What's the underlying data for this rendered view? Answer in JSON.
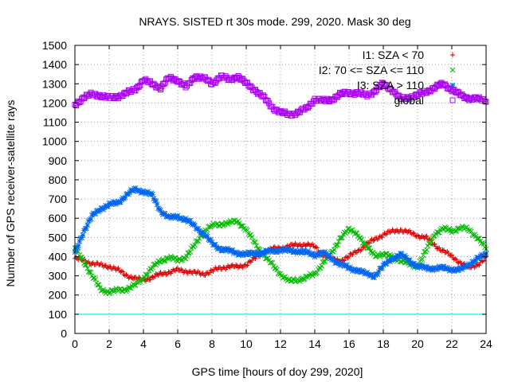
{
  "chart_data": {
    "type": "scatter",
    "title": "NRAYS. SISTED rt 30s mode. 299, 2020. Mask 30 deg",
    "xlabel": "GPS time [hours of doy 299, 2020]",
    "ylabel": "Number of GPS receiver-satellite rays",
    "xlim": [
      0,
      24
    ],
    "ylim": [
      0,
      1500
    ],
    "xticks": [
      "0",
      "2",
      "4",
      "6",
      "8",
      "10",
      "12",
      "14",
      "16",
      "18",
      "20",
      "22",
      "24"
    ],
    "yticks": [
      "0",
      "100",
      "200",
      "300",
      "400",
      "500",
      "600",
      "700",
      "800",
      "900",
      "1000",
      "1100",
      "1200",
      "1300",
      "1400",
      "1500"
    ],
    "grid": true,
    "legend_position": "top-right",
    "reference_line": {
      "y": 100,
      "color": "#00dddd"
    },
    "series": [
      {
        "name": "I1: SZA < 70",
        "marker": "+",
        "color": "#dd0000",
        "points": [
          [
            0,
            390
          ],
          [
            0.5,
            380
          ],
          [
            1,
            365
          ],
          [
            1.5,
            355
          ],
          [
            2,
            350
          ],
          [
            2.5,
            330
          ],
          [
            3,
            305
          ],
          [
            3.5,
            285
          ],
          [
            4,
            280
          ],
          [
            4.5,
            290
          ],
          [
            5,
            310
          ],
          [
            5.5,
            320
          ],
          [
            6,
            330
          ],
          [
            6.5,
            325
          ],
          [
            7,
            315
          ],
          [
            7.5,
            310
          ],
          [
            8,
            325
          ],
          [
            8.5,
            340
          ],
          [
            9,
            350
          ],
          [
            9.5,
            345
          ],
          [
            10,
            360
          ],
          [
            10.5,
            390
          ],
          [
            11,
            420
          ],
          [
            11.5,
            440
          ],
          [
            12,
            445
          ],
          [
            12.5,
            455
          ],
          [
            13,
            460
          ],
          [
            13.5,
            465
          ],
          [
            14,
            450
          ],
          [
            14.5,
            410
          ],
          [
            15,
            385
          ],
          [
            15.5,
            380
          ],
          [
            16,
            400
          ],
          [
            16.5,
            430
          ],
          [
            17,
            460
          ],
          [
            17.5,
            490
          ],
          [
            18,
            515
          ],
          [
            18.5,
            530
          ],
          [
            19,
            540
          ],
          [
            19.5,
            525
          ],
          [
            20,
            510
          ],
          [
            20.5,
            500
          ],
          [
            21,
            460
          ],
          [
            21.5,
            430
          ],
          [
            22,
            400
          ],
          [
            22.5,
            370
          ],
          [
            23,
            340
          ],
          [
            23.5,
            360
          ],
          [
            24,
            390
          ]
        ]
      },
      {
        "name": "I2: 70 <= SZA <= 110",
        "marker": "x",
        "color": "#00bb00",
        "points": [
          [
            0,
            440
          ],
          [
            0.5,
            380
          ],
          [
            1,
            300
          ],
          [
            1.5,
            230
          ],
          [
            2,
            215
          ],
          [
            2.5,
            225
          ],
          [
            3,
            230
          ],
          [
            3.5,
            250
          ],
          [
            4,
            290
          ],
          [
            4.5,
            340
          ],
          [
            5,
            380
          ],
          [
            5.5,
            395
          ],
          [
            6,
            380
          ],
          [
            6.5,
            400
          ],
          [
            7,
            460
          ],
          [
            7.5,
            530
          ],
          [
            8,
            560
          ],
          [
            8.5,
            570
          ],
          [
            9,
            575
          ],
          [
            9.5,
            585
          ],
          [
            10,
            540
          ],
          [
            10.5,
            470
          ],
          [
            11,
            410
          ],
          [
            11.5,
            360
          ],
          [
            12,
            310
          ],
          [
            12.5,
            270
          ],
          [
            13,
            280
          ],
          [
            13.5,
            290
          ],
          [
            14,
            310
          ],
          [
            14.5,
            370
          ],
          [
            15,
            420
          ],
          [
            15.5,
            500
          ],
          [
            16,
            540
          ],
          [
            16.5,
            520
          ],
          [
            17,
            450
          ],
          [
            17.5,
            410
          ],
          [
            18,
            410
          ],
          [
            18.5,
            400
          ],
          [
            19,
            380
          ],
          [
            19.5,
            360
          ],
          [
            20,
            350
          ],
          [
            20.5,
            430
          ],
          [
            21,
            520
          ],
          [
            21.5,
            545
          ],
          [
            22,
            535
          ],
          [
            22.5,
            550
          ],
          [
            23,
            540
          ],
          [
            23.5,
            500
          ],
          [
            24,
            440
          ]
        ]
      },
      {
        "name": "I3: SZA > 110",
        "marker": "*",
        "color": "#0066ee",
        "points": [
          [
            0,
            420
          ],
          [
            0.5,
            530
          ],
          [
            1,
            610
          ],
          [
            1.5,
            650
          ],
          [
            2,
            670
          ],
          [
            2.5,
            680
          ],
          [
            3,
            720
          ],
          [
            3.5,
            750
          ],
          [
            4,
            740
          ],
          [
            4.5,
            720
          ],
          [
            5,
            640
          ],
          [
            5.5,
            600
          ],
          [
            6,
            610
          ],
          [
            6.5,
            590
          ],
          [
            7,
            560
          ],
          [
            7.5,
            520
          ],
          [
            8,
            470
          ],
          [
            8.5,
            440
          ],
          [
            9,
            430
          ],
          [
            9.5,
            420
          ],
          [
            10,
            410
          ],
          [
            10.5,
            420
          ],
          [
            11,
            420
          ],
          [
            11.5,
            430
          ],
          [
            12,
            435
          ],
          [
            12.5,
            430
          ],
          [
            13,
            430
          ],
          [
            13.5,
            420
          ],
          [
            14,
            410
          ],
          [
            14.5,
            420
          ],
          [
            15,
            390
          ],
          [
            15.5,
            360
          ],
          [
            16,
            340
          ],
          [
            16.5,
            330
          ],
          [
            17,
            310
          ],
          [
            17.5,
            300
          ],
          [
            18,
            350
          ],
          [
            18.5,
            390
          ],
          [
            19,
            410
          ],
          [
            19.5,
            380
          ],
          [
            20,
            350
          ],
          [
            20.5,
            340
          ],
          [
            21,
            340
          ],
          [
            21.5,
            340
          ],
          [
            22,
            335
          ],
          [
            22.5,
            330
          ],
          [
            23,
            360
          ],
          [
            23.5,
            390
          ],
          [
            24,
            410
          ]
        ]
      },
      {
        "name": "global",
        "marker": "square",
        "color": "#aa00ee",
        "points": [
          [
            0,
            1190
          ],
          [
            0.5,
            1230
          ],
          [
            1,
            1245
          ],
          [
            1.5,
            1240
          ],
          [
            2,
            1225
          ],
          [
            2.5,
            1235
          ],
          [
            3,
            1250
          ],
          [
            3.5,
            1270
          ],
          [
            4,
            1320
          ],
          [
            4.5,
            1300
          ],
          [
            5,
            1280
          ],
          [
            5.5,
            1330
          ],
          [
            6,
            1320
          ],
          [
            6.5,
            1280
          ],
          [
            7,
            1340
          ],
          [
            7.5,
            1330
          ],
          [
            8,
            1300
          ],
          [
            8.5,
            1340
          ],
          [
            9,
            1320
          ],
          [
            9.5,
            1340
          ],
          [
            10,
            1300
          ],
          [
            10.5,
            1270
          ],
          [
            11,
            1230
          ],
          [
            11.5,
            1180
          ],
          [
            12,
            1150
          ],
          [
            12.5,
            1140
          ],
          [
            13,
            1150
          ],
          [
            13.5,
            1170
          ],
          [
            14,
            1220
          ],
          [
            14.5,
            1210
          ],
          [
            15,
            1220
          ],
          [
            15.5,
            1245
          ],
          [
            16,
            1255
          ],
          [
            16.5,
            1250
          ],
          [
            17,
            1240
          ],
          [
            17.5,
            1260
          ],
          [
            18,
            1300
          ],
          [
            18.5,
            1270
          ],
          [
            19,
            1220
          ],
          [
            19.5,
            1230
          ],
          [
            20,
            1240
          ],
          [
            20.5,
            1260
          ],
          [
            21,
            1280
          ],
          [
            21.5,
            1300
          ],
          [
            22,
            1270
          ],
          [
            22.5,
            1240
          ],
          [
            23,
            1225
          ],
          [
            23.5,
            1220
          ],
          [
            24,
            1215
          ]
        ]
      }
    ]
  }
}
